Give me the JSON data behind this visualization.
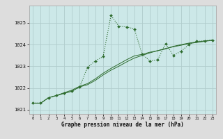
{
  "xlabel": "Graphe pression niveau de la mer (hPa)",
  "background_color": "#cce8e8",
  "grid_color": "#b0cccc",
  "line_color": "#2d6b2d",
  "border_color": "#aaaaaa",
  "ylim": [
    1020.8,
    1025.8
  ],
  "xlim": [
    -0.5,
    23.5
  ],
  "yticks": [
    1021,
    1022,
    1023,
    1024,
    1025
  ],
  "xticks": [
    0,
    1,
    2,
    3,
    4,
    5,
    6,
    7,
    8,
    9,
    10,
    11,
    12,
    13,
    14,
    15,
    16,
    17,
    18,
    19,
    20,
    21,
    22,
    23
  ],
  "series1_x": [
    0,
    1,
    2,
    3,
    4,
    5,
    6,
    7,
    8,
    9,
    10,
    11,
    12,
    13,
    14,
    15,
    16,
    17,
    18,
    19,
    20,
    21,
    22,
    23
  ],
  "series1_y": [
    1021.3,
    1021.3,
    1021.55,
    1021.65,
    1021.75,
    1021.85,
    1022.05,
    1022.95,
    1023.25,
    1023.45,
    1025.35,
    1024.85,
    1024.82,
    1024.72,
    1023.55,
    1023.25,
    1023.3,
    1024.05,
    1023.5,
    1023.7,
    1024.0,
    1024.15,
    1024.18,
    1024.2
  ],
  "series2_x": [
    0,
    1,
    2,
    3,
    4,
    5,
    6,
    7,
    8,
    9,
    10,
    11,
    12,
    13,
    14,
    15,
    16,
    17,
    18,
    19,
    20,
    21,
    22,
    23
  ],
  "series2_y": [
    1021.3,
    1021.3,
    1021.55,
    1021.65,
    1021.75,
    1021.85,
    1022.05,
    1022.15,
    1022.35,
    1022.6,
    1022.82,
    1023.0,
    1023.2,
    1023.38,
    1023.5,
    1023.62,
    1023.72,
    1023.82,
    1023.9,
    1023.97,
    1024.05,
    1024.1,
    1024.15,
    1024.2
  ],
  "series3_x": [
    0,
    1,
    2,
    3,
    4,
    5,
    6,
    7,
    8,
    9,
    10,
    11,
    12,
    13,
    14,
    15,
    16,
    17,
    18,
    19,
    20,
    21,
    22,
    23
  ],
  "series3_y": [
    1021.3,
    1021.3,
    1021.55,
    1021.65,
    1021.78,
    1021.9,
    1022.08,
    1022.2,
    1022.42,
    1022.68,
    1022.9,
    1023.1,
    1023.3,
    1023.48,
    1023.55,
    1023.65,
    1023.72,
    1023.8,
    1023.92,
    1024.0,
    1024.07,
    1024.12,
    1024.17,
    1024.2
  ],
  "outer_bg": "#dddddd"
}
